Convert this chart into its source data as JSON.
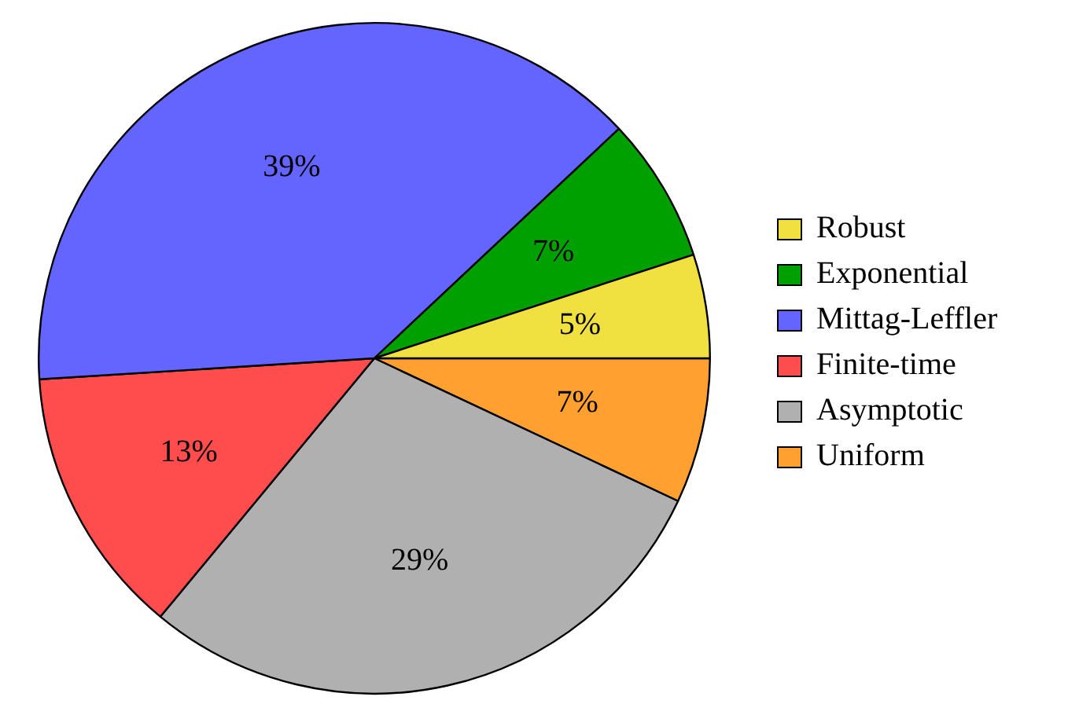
{
  "chart_data": {
    "type": "pie",
    "categories": [
      "Robust",
      "Exponential",
      "Mittag-Leffler",
      "Finite-time",
      "Asymptotic",
      "Uniform"
    ],
    "values": [
      5,
      7,
      39,
      13,
      29,
      7
    ],
    "value_labels": [
      "5%",
      "7%",
      "39%",
      "13%",
      "29%",
      "7%"
    ],
    "colors": [
      "#f0e040",
      "#00a000",
      "#6464ff",
      "#ff4c4c",
      "#b0b0b0",
      "#ffa030"
    ],
    "legend": "right"
  }
}
